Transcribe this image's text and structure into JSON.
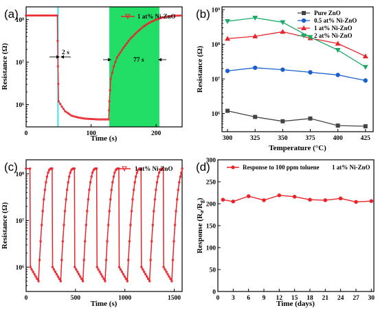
{
  "chart_data": [
    {
      "panel_label": "(a)",
      "type": "line",
      "xlabel": "Time (s)",
      "ylabel": "Resistance (Ω)",
      "xlim": [
        0,
        240
      ],
      "ylim_log": [
        300000.0,
        200000000.0
      ],
      "x_ticks": [
        0,
        100,
        200
      ],
      "y_ticks": [
        1000000.0,
        10000000.0,
        100000000.0
      ],
      "y_tick_labels": [
        "10⁶",
        "10⁷",
        "10⁸"
      ],
      "legend": [
        "1 at% Ni-ZnO"
      ],
      "annotations": [
        "2 s",
        "77 s"
      ],
      "highlight_regions": [
        {
          "x": [
            48,
            50
          ],
          "color": "#33e0ff"
        },
        {
          "x": [
            128,
            205
          ],
          "color": "#22dd66"
        }
      ],
      "series": [
        {
          "name": "1 at% Ni-ZnO",
          "color": "#e8232a",
          "x": [
            0,
            20,
            40,
            48,
            49,
            50,
            55,
            60,
            70,
            80,
            90,
            100,
            110,
            120,
            127,
            128,
            130,
            135,
            140,
            150,
            160,
            170,
            180,
            190,
            200,
            210,
            220,
            230,
            240
          ],
          "y": [
            125000000.0,
            125000000.0,
            125000000.0,
            125000000.0,
            8000000.0,
            1200000.0,
            900000.0,
            700000.0,
            550000.0,
            500000.0,
            470000.0,
            460000.0,
            450000.0,
            450000.0,
            450000.0,
            1200000.0,
            4000000.0,
            8000000.0,
            13000000.0,
            22000000.0,
            35000000.0,
            50000000.0,
            68000000.0,
            85000000.0,
            100000000.0,
            113000000.0,
            120000000.0,
            124000000.0,
            125000000.0
          ]
        }
      ]
    },
    {
      "panel_label": "(b)",
      "type": "line",
      "xlabel": "Temperature (°C)",
      "ylabel": "Resistance (Ω)",
      "xlim": [
        295,
        432
      ],
      "ylim_log": [
        300000.0,
        1200000000.0
      ],
      "x": [
        300,
        325,
        350,
        375,
        400,
        425
      ],
      "y_ticks": [
        1000000.0,
        10000000.0,
        100000000.0,
        1000000000.0
      ],
      "y_tick_labels": [
        "10⁶",
        "10⁷",
        "10⁸",
        "10⁹"
      ],
      "series": [
        {
          "name": "Pure ZnO",
          "color": "#444444",
          "marker": "square",
          "values": [
            1200000.0,
            800000.0,
            600000.0,
            720000.0,
            450000.0,
            430000.0
          ]
        },
        {
          "name": "0.5 at% Ni-ZnO",
          "color": "#1a5fd0",
          "marker": "circle",
          "values": [
            17000000.0,
            21000000.0,
            18500000.0,
            15500000.0,
            13000000.0,
            9000000.0
          ]
        },
        {
          "name": "1 at% Ni-ZnO",
          "color": "#e8232a",
          "marker": "triangle-up",
          "values": [
            145000000.0,
            170000000.0,
            230000000.0,
            150000000.0,
            105000000.0,
            45000000.0
          ]
        },
        {
          "name": "2 at% Ni-ZnO",
          "color": "#1aaa66",
          "marker": "triangle-down",
          "values": [
            460000000.0,
            580000000.0,
            430000000.0,
            160000000.0,
            68000000.0,
            22000000.0
          ]
        }
      ]
    },
    {
      "panel_label": "(c)",
      "type": "line",
      "xlabel": "Time (s)",
      "ylabel": "Resistance (Ω)",
      "xlim": [
        0,
        1580
      ],
      "ylim_log": [
        300000.0,
        200000000.0
      ],
      "x_ticks": [
        0,
        500,
        1000,
        1500
      ],
      "y_ticks": [
        1000000.0,
        10000000.0,
        100000000.0
      ],
      "y_tick_labels": [
        "10⁶",
        "10⁷",
        "10⁸"
      ],
      "legend": [
        "1 at% Ni-ZnO"
      ],
      "cycles": {
        "count": 7,
        "period": 225,
        "first_drop": 40,
        "low_duration": 85,
        "high": 130000000.0,
        "low_start": 1000000.0,
        "low_end": 500000.0
      },
      "series": [
        {
          "name": "1 at% Ni-ZnO",
          "color": "#e8232a"
        }
      ]
    },
    {
      "panel_label": "(d)",
      "type": "line",
      "xlabel": "Time (days)",
      "ylabel": "Response (Ra/Rg)",
      "xlim": [
        0,
        30.5
      ],
      "ylim": [
        0,
        300
      ],
      "x_ticks": [
        0,
        3,
        6,
        9,
        12,
        15,
        18,
        21,
        24,
        27,
        30
      ],
      "y_ticks": [
        0,
        50,
        100,
        150,
        200,
        250,
        300
      ],
      "annotation": "1 at% Ni-ZnO",
      "series": [
        {
          "name": "Response to 100 ppm toluene",
          "color": "#e8232a",
          "x": [
            1,
            3,
            6,
            9,
            12,
            15,
            18,
            21,
            24,
            27,
            30
          ],
          "values": [
            209,
            205,
            217,
            208,
            219,
            216,
            209,
            208,
            212,
            204,
            206
          ]
        }
      ]
    }
  ]
}
